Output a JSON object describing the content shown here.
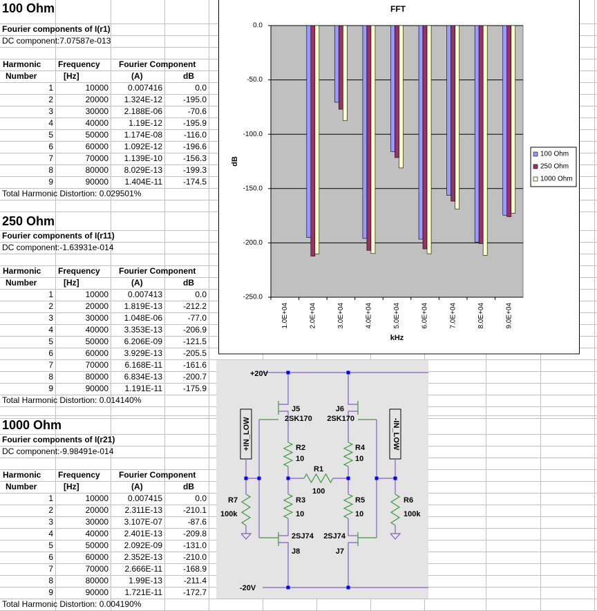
{
  "sections": [
    {
      "title": "100 Ohm",
      "subtitle": "Fourier components of I(r1)",
      "dc": "DC component:7.07587e-013",
      "header": [
        [
          "Harmonic",
          "Frequency",
          "Fourier Component"
        ],
        [
          "Number",
          "[Hz]",
          "(A)",
          "dB"
        ]
      ],
      "rows": [
        [
          "1",
          "10000",
          "0.007416",
          "0.0"
        ],
        [
          "2",
          "20000",
          "1.324E-12",
          "-195.0"
        ],
        [
          "3",
          "30000",
          "2.188E-06",
          "-70.6"
        ],
        [
          "4",
          "40000",
          "1.19E-12",
          "-195.9"
        ],
        [
          "5",
          "50000",
          "1.174E-08",
          "-116.0"
        ],
        [
          "6",
          "60000",
          "1.092E-12",
          "-196.6"
        ],
        [
          "7",
          "70000",
          "1.139E-10",
          "-156.3"
        ],
        [
          "8",
          "80000",
          "8.029E-13",
          "-199.3"
        ],
        [
          "9",
          "90000",
          "1.404E-11",
          "-174.5"
        ]
      ],
      "thd": "Total Harmonic Distortion: 0.029501%"
    },
    {
      "title": "250 Ohm",
      "subtitle": "Fourier components of I(r11)",
      "dc": "DC component:-1.63931e-014",
      "header": [
        [
          "Harmonic",
          "Frequency",
          "Fourier Component"
        ],
        [
          "Number",
          "[Hz]",
          "(A)",
          "dB"
        ]
      ],
      "rows": [
        [
          "1",
          "10000",
          "0.007413",
          "0.0"
        ],
        [
          "2",
          "20000",
          "1.819E-13",
          "-212.2"
        ],
        [
          "3",
          "30000",
          "1.048E-06",
          "-77.0"
        ],
        [
          "4",
          "40000",
          "3.353E-13",
          "-206.9"
        ],
        [
          "5",
          "50000",
          "6.206E-09",
          "-121.5"
        ],
        [
          "6",
          "60000",
          "3.929E-13",
          "-205.5"
        ],
        [
          "7",
          "70000",
          "6.168E-11",
          "-161.6"
        ],
        [
          "8",
          "80000",
          "6.834E-13",
          "-200.7"
        ],
        [
          "9",
          "90000",
          "1.191E-11",
          "-175.9"
        ]
      ],
      "thd": "Total Harmonic Distortion: 0.014140%"
    },
    {
      "title": "1000 Ohm",
      "subtitle": "Fourier components of I(r21)",
      "dc": "DC component:-9.98491e-014",
      "header": [
        [
          "Harmonic",
          "Frequency",
          "Fourier Component"
        ],
        [
          "Number",
          "[Hz]",
          "(A)",
          "dB"
        ]
      ],
      "rows": [
        [
          "1",
          "10000",
          "0.007415",
          "0.0"
        ],
        [
          "2",
          "20000",
          "2.311E-13",
          "-210.1"
        ],
        [
          "3",
          "30000",
          "3.107E-07",
          "-87.6"
        ],
        [
          "4",
          "40000",
          "2.401E-13",
          "-209.8"
        ],
        [
          "5",
          "50000",
          "2.092E-09",
          "-131.0"
        ],
        [
          "6",
          "60000",
          "2.352E-13",
          "-210.0"
        ],
        [
          "7",
          "70000",
          "2.666E-11",
          "-168.9"
        ],
        [
          "8",
          "80000",
          "1.99E-13",
          "-211.4"
        ],
        [
          "9",
          "90000",
          "1.721E-11",
          "-172.7"
        ]
      ],
      "thd": "Total Harmonic Distortion: 0.004190%"
    }
  ],
  "chart_data": {
    "type": "bar",
    "title": "FFT",
    "xlabel": "kHz",
    "ylabel": "dB",
    "categories": [
      "1.0E+04",
      "2.0E+04",
      "3.0E+04",
      "4.0E+04",
      "5.0E+04",
      "6.0E+04",
      "7.0E+04",
      "8.0E+04",
      "9.0E+04"
    ],
    "series": [
      {
        "name": "100 Ohm",
        "color": "#9999ff",
        "values": [
          0.0,
          -195.0,
          -70.6,
          -195.9,
          -116.0,
          -196.6,
          -156.3,
          -199.3,
          -174.5
        ]
      },
      {
        "name": "250 Ohm",
        "color": "#993366",
        "values": [
          0.0,
          -212.2,
          -77.0,
          -206.9,
          -121.5,
          -205.5,
          -161.6,
          -200.7,
          -175.9
        ]
      },
      {
        "name": "1000 Ohm",
        "color": "#ffffcc",
        "values": [
          0.0,
          -210.1,
          -87.6,
          -209.8,
          -131.0,
          -210.0,
          -168.9,
          -211.4,
          -172.7
        ]
      }
    ],
    "ylim": [
      -250,
      0
    ],
    "yticks": [
      {
        "value": 0,
        "label": "0.0"
      },
      {
        "value": -50,
        "label": "-50.0"
      },
      {
        "value": -100,
        "label": "-100.0"
      },
      {
        "value": -150,
        "label": "-150.0"
      },
      {
        "value": -200,
        "label": "-200.0"
      },
      {
        "value": -250,
        "label": "-250.0"
      }
    ],
    "grid": true,
    "legend": "right"
  },
  "schematic": {
    "labels": [
      "+20V",
      "-20V",
      "J5",
      "2SK170",
      "J6",
      "2SK170",
      "R2",
      "10",
      "R4",
      "10",
      "R1",
      "100",
      "R3",
      "10",
      "R5",
      "10",
      "R7",
      "100k",
      "R6",
      "100k",
      "2SJ74",
      "2SJ74",
      "J8",
      "J7",
      "+IN_LOW",
      "-IN_LOW"
    ]
  }
}
